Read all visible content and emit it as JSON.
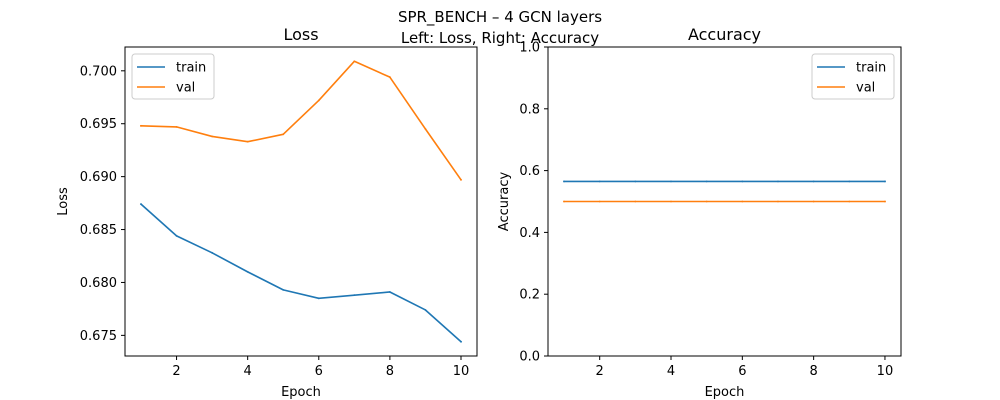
{
  "figure": {
    "title_line1": "SPR_BENCH – 4 GCN layers",
    "title_line2": "Left: Loss, Right: Accuracy"
  },
  "chart_data": [
    {
      "type": "line",
      "title": "Loss",
      "xlabel": "Epoch",
      "ylabel": "Loss",
      "x": [
        1,
        2,
        3,
        4,
        5,
        6,
        7,
        8,
        9,
        10
      ],
      "xticks": [
        2,
        4,
        6,
        8,
        10
      ],
      "yticks": [
        "0.675",
        "0.680",
        "0.685",
        "0.690",
        "0.695",
        "0.700"
      ],
      "xlim": [
        0.55,
        10.45
      ],
      "ylim": [
        0.67305,
        0.70225
      ],
      "legend_position": "upper left",
      "grid": false,
      "series": [
        {
          "name": "train",
          "color": "#1f77b4",
          "values": [
            0.6874,
            0.6844,
            0.6828,
            0.681,
            0.6793,
            0.6785,
            0.6788,
            0.6791,
            0.6774,
            0.6744
          ]
        },
        {
          "name": "val",
          "color": "#ff7f0e",
          "values": [
            0.6948,
            0.6947,
            0.6938,
            0.6933,
            0.694,
            0.6972,
            0.7009,
            0.6994,
            0.6945,
            0.6897
          ]
        }
      ]
    },
    {
      "type": "line",
      "title": "Accuracy",
      "xlabel": "Epoch",
      "ylabel": "Accuracy",
      "x": [
        1,
        2,
        3,
        4,
        5,
        6,
        7,
        8,
        9,
        10
      ],
      "xticks": [
        2,
        4,
        6,
        8,
        10
      ],
      "yticks": [
        "0.0",
        "0.2",
        "0.4",
        "0.6",
        "0.8",
        "1.0"
      ],
      "xlim": [
        0.55,
        10.45
      ],
      "ylim": [
        0,
        1
      ],
      "legend_position": "upper right",
      "grid": false,
      "series": [
        {
          "name": "train",
          "color": "#1f77b4",
          "values": [
            0.565,
            0.565,
            0.565,
            0.565,
            0.565,
            0.565,
            0.565,
            0.565,
            0.565,
            0.565
          ]
        },
        {
          "name": "val",
          "color": "#ff7f0e",
          "values": [
            0.5,
            0.5,
            0.5,
            0.5,
            0.5,
            0.5,
            0.5,
            0.5,
            0.5,
            0.5
          ]
        }
      ]
    }
  ]
}
